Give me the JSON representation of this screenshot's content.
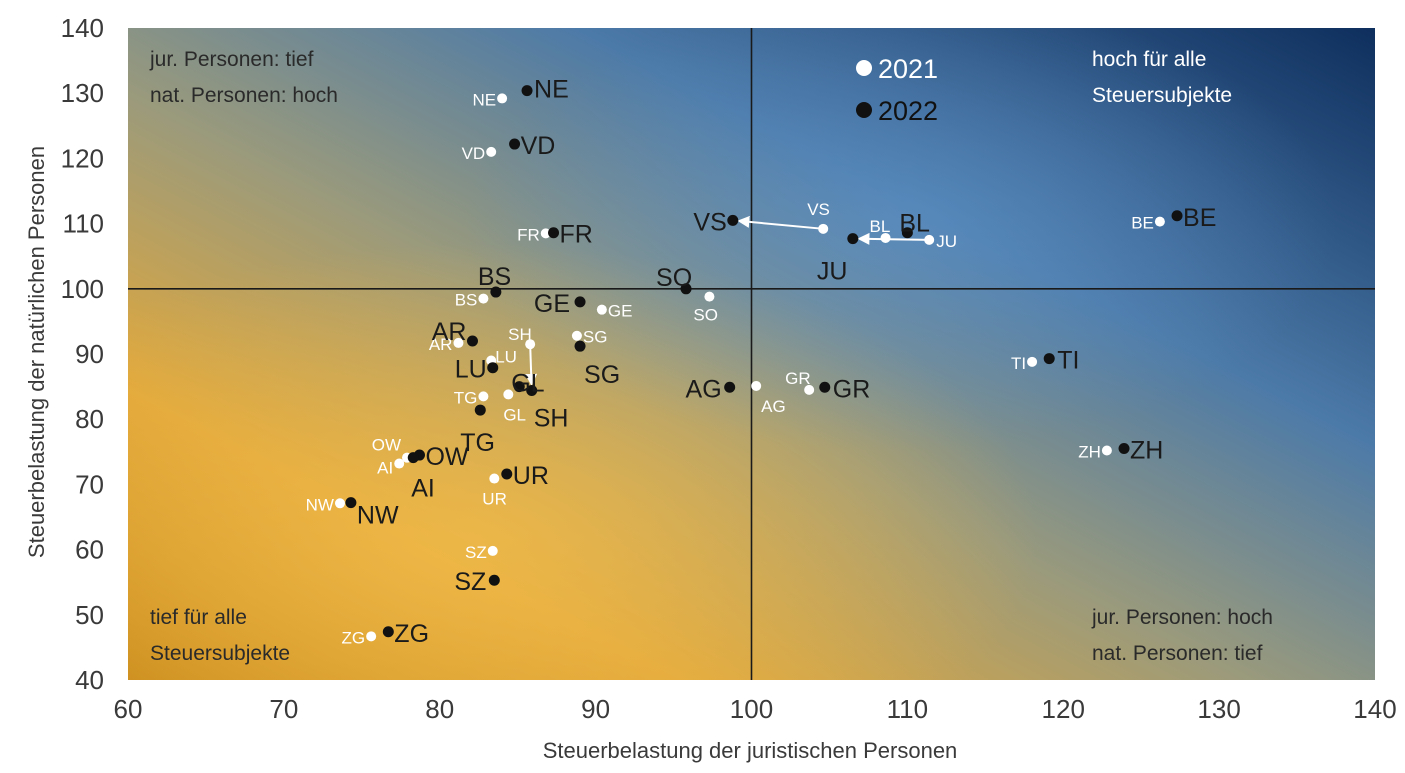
{
  "chart_data": {
    "type": "scatter",
    "xlabel": "Steuerbelastung der juristischen Personen",
    "ylabel": "Steuerbelastung der natürlichen Personen",
    "xlim": [
      60,
      140
    ],
    "ylim": [
      40,
      140
    ],
    "x_ticks": [
      "60",
      "70",
      "80",
      "90",
      "100",
      "110",
      "120",
      "130",
      "140"
    ],
    "y_ticks": [
      "40",
      "50",
      "60",
      "70",
      "80",
      "90",
      "100",
      "110",
      "120",
      "130",
      "140"
    ],
    "reference_lines": {
      "x": 100,
      "y": 100
    },
    "grid": false,
    "legend_position": "top-center",
    "colors": {
      "series_2021": "#ffffff",
      "series_2022": "#111111"
    },
    "quadrant_labels": {
      "top_left": [
        "jur. Personen: tief",
        "nat. Personen: hoch"
      ],
      "top_right": [
        "hoch für alle",
        "Steuersubjekte"
      ],
      "bottom_left": [
        "tief für alle",
        "Steuersubjekte"
      ],
      "bottom_right": [
        "jur. Personen: hoch",
        "nat. Personen: tief"
      ]
    },
    "series": [
      {
        "name": "2021",
        "points": [
          {
            "label": "NE",
            "x": 84.0,
            "y": 129.2
          },
          {
            "label": "VD",
            "x": 83.3,
            "y": 121.0
          },
          {
            "label": "FR",
            "x": 86.8,
            "y": 108.5
          },
          {
            "label": "VS",
            "x": 104.6,
            "y": 109.2
          },
          {
            "label": "BL",
            "x": 108.6,
            "y": 107.8
          },
          {
            "label": "JU",
            "x": 111.4,
            "y": 107.5
          },
          {
            "label": "BE",
            "x": 126.2,
            "y": 110.3
          },
          {
            "label": "BS",
            "x": 82.8,
            "y": 98.5
          },
          {
            "label": "GE",
            "x": 90.4,
            "y": 96.8
          },
          {
            "label": "SO",
            "x": 97.3,
            "y": 98.8
          },
          {
            "label": "SG",
            "x": 88.8,
            "y": 92.8
          },
          {
            "label": "SH",
            "x": 85.8,
            "y": 91.5
          },
          {
            "label": "AR",
            "x": 81.2,
            "y": 91.7
          },
          {
            "label": "LU",
            "x": 83.3,
            "y": 89.0
          },
          {
            "label": "TG",
            "x": 82.8,
            "y": 83.5
          },
          {
            "label": "GL",
            "x": 84.4,
            "y": 83.8
          },
          {
            "label": "AG",
            "x": 100.3,
            "y": 85.1
          },
          {
            "label": "GR",
            "x": 103.7,
            "y": 84.5
          },
          {
            "label": "TI",
            "x": 118.0,
            "y": 88.8
          },
          {
            "label": "ZH",
            "x": 122.8,
            "y": 75.2
          },
          {
            "label": "OW",
            "x": 77.9,
            "y": 74.1
          },
          {
            "label": "AI",
            "x": 77.4,
            "y": 73.2
          },
          {
            "label": "UR",
            "x": 83.5,
            "y": 70.9
          },
          {
            "label": "NW",
            "x": 73.6,
            "y": 67.1
          },
          {
            "label": "SZ",
            "x": 83.4,
            "y": 59.8
          },
          {
            "label": "ZG",
            "x": 75.6,
            "y": 46.7
          }
        ]
      },
      {
        "name": "2022",
        "points": [
          {
            "label": "NE",
            "x": 85.6,
            "y": 130.4
          },
          {
            "label": "VD",
            "x": 84.8,
            "y": 122.2
          },
          {
            "label": "FR",
            "x": 87.3,
            "y": 108.6
          },
          {
            "label": "VS",
            "x": 98.8,
            "y": 110.5
          },
          {
            "label": "BL",
            "x": 110.0,
            "y": 108.6
          },
          {
            "label": "JU",
            "x": 106.5,
            "y": 107.7
          },
          {
            "label": "BE",
            "x": 127.3,
            "y": 111.2
          },
          {
            "label": "BS",
            "x": 83.6,
            "y": 99.5
          },
          {
            "label": "GE",
            "x": 89.0,
            "y": 98.0
          },
          {
            "label": "SO",
            "x": 95.8,
            "y": 100.0
          },
          {
            "label": "SG",
            "x": 89.0,
            "y": 91.2
          },
          {
            "label": "SH",
            "x": 85.9,
            "y": 84.4
          },
          {
            "label": "AR",
            "x": 82.1,
            "y": 92.0
          },
          {
            "label": "LU",
            "x": 83.4,
            "y": 87.9
          },
          {
            "label": "TG",
            "x": 82.6,
            "y": 81.4
          },
          {
            "label": "GL",
            "x": 85.1,
            "y": 85.0
          },
          {
            "label": "AG",
            "x": 98.6,
            "y": 84.9
          },
          {
            "label": "GR",
            "x": 104.7,
            "y": 84.9
          },
          {
            "label": "TI",
            "x": 119.1,
            "y": 89.3
          },
          {
            "label": "ZH",
            "x": 123.9,
            "y": 75.5
          },
          {
            "label": "OW",
            "x": 78.7,
            "y": 74.5
          },
          {
            "label": "AI",
            "x": 78.3,
            "y": 74.1
          },
          {
            "label": "UR",
            "x": 84.3,
            "y": 71.6
          },
          {
            "label": "NW",
            "x": 74.3,
            "y": 67.2
          },
          {
            "label": "SZ",
            "x": 83.5,
            "y": 55.3
          },
          {
            "label": "ZG",
            "x": 76.7,
            "y": 47.4
          }
        ]
      }
    ]
  }
}
